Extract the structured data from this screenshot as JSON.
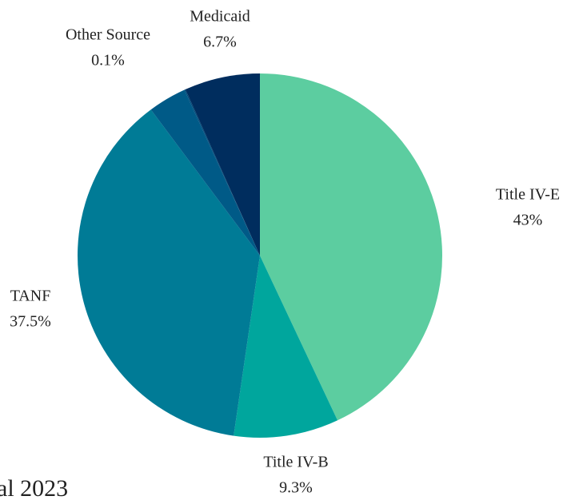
{
  "chart_data": {
    "type": "pie",
    "categories": [
      "Title IV-E",
      "Title IV-B",
      "TANF",
      null,
      "Other Source",
      "Medicaid"
    ],
    "values": [
      43,
      9.3,
      37.5,
      3.4,
      0.1,
      6.7
    ],
    "value_labels": [
      "43%",
      "9.3%",
      "37.5%",
      null,
      "0.1%",
      "6.7%"
    ],
    "colors": [
      "#5ccda0",
      "#00a69d",
      "#007b96",
      "#005a87",
      "#004a7a",
      "#002d5e"
    ],
    "footer_fragment": "al 2023"
  }
}
